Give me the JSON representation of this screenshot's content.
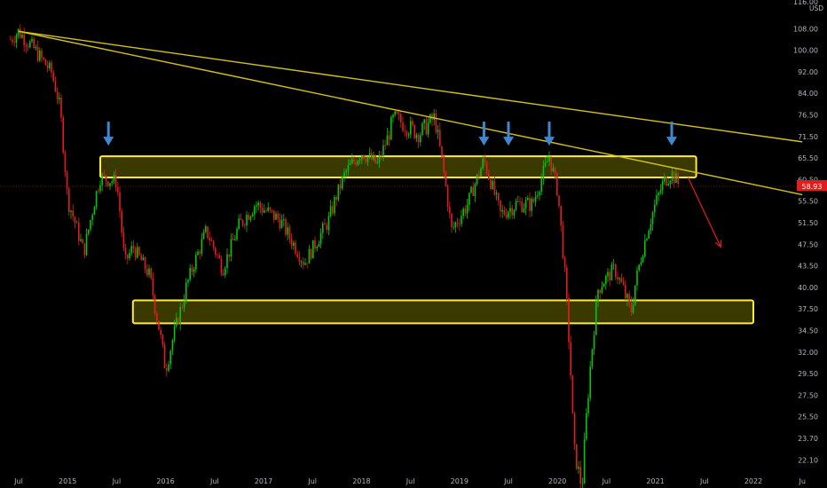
{
  "chart_data": {
    "type": "candlestick",
    "currency": "USD",
    "last_price": "58.93",
    "y_axis_ticks": [
      "116.00",
      "108.00",
      "100.00",
      "92.00",
      "84.00",
      "76.50",
      "71.50",
      "65.50",
      "60.50",
      "55.50",
      "51.50",
      "47.50",
      "43.50",
      "40.00",
      "37.50",
      "34.50",
      "32.00",
      "29.50",
      "27.50",
      "25.50",
      "23.70",
      "22.10"
    ],
    "x_axis_ticks": [
      "Jul",
      "2015",
      "Jul",
      "2016",
      "Jul",
      "2017",
      "Jul",
      "2018",
      "Jul",
      "2019",
      "Jul",
      "2020",
      "Jul",
      "2021",
      "Jul",
      "2022",
      "Ju"
    ],
    "price_path": [
      {
        "x": "2014-06",
        "y": 104
      },
      {
        "x": "2014-07",
        "y": 107
      },
      {
        "x": "2014-09",
        "y": 100
      },
      {
        "x": "2014-11",
        "y": 92
      },
      {
        "x": "2014-12",
        "y": 80
      },
      {
        "x": "2015-01",
        "y": 56
      },
      {
        "x": "2015-03",
        "y": 46
      },
      {
        "x": "2015-05",
        "y": 61
      },
      {
        "x": "2015-07",
        "y": 60
      },
      {
        "x": "2015-08",
        "y": 44
      },
      {
        "x": "2015-09",
        "y": 47
      },
      {
        "x": "2015-11",
        "y": 42
      },
      {
        "x": "2016-01",
        "y": 30
      },
      {
        "x": "2016-03",
        "y": 38
      },
      {
        "x": "2016-06",
        "y": 50
      },
      {
        "x": "2016-08",
        "y": 43
      },
      {
        "x": "2016-10",
        "y": 51
      },
      {
        "x": "2016-12",
        "y": 55
      },
      {
        "x": "2017-03",
        "y": 52
      },
      {
        "x": "2017-06",
        "y": 44
      },
      {
        "x": "2017-09",
        "y": 52
      },
      {
        "x": "2017-11",
        "y": 62
      },
      {
        "x": "2018-01",
        "y": 67
      },
      {
        "x": "2018-03",
        "y": 64
      },
      {
        "x": "2018-05",
        "y": 76
      },
      {
        "x": "2018-08",
        "y": 72
      },
      {
        "x": "2018-10",
        "y": 76
      },
      {
        "x": "2018-12",
        "y": 50
      },
      {
        "x": "2019-02",
        "y": 55
      },
      {
        "x": "2019-04",
        "y": 65
      },
      {
        "x": "2019-06",
        "y": 53
      },
      {
        "x": "2019-08",
        "y": 55
      },
      {
        "x": "2019-10",
        "y": 55
      },
      {
        "x": "2019-12",
        "y": 66
      },
      {
        "x": "2020-01",
        "y": 58
      },
      {
        "x": "2020-03",
        "y": 23
      },
      {
        "x": "2020-04",
        "y": 20
      },
      {
        "x": "2020-06",
        "y": 40
      },
      {
        "x": "2020-08",
        "y": 43
      },
      {
        "x": "2020-10",
        "y": 37
      },
      {
        "x": "2020-12",
        "y": 50
      },
      {
        "x": "2021-02",
        "y": 60
      },
      {
        "x": "2021-03",
        "y": 62
      },
      {
        "x": "2021-04",
        "y": 58.93
      }
    ],
    "support_zones": [
      {
        "y_low": 61,
        "y_high": 66,
        "x_start": "2015-05",
        "x_end": "2021-06"
      },
      {
        "y_low": 35.5,
        "y_high": 38.5,
        "x_start": "2015-09",
        "x_end": "2022-01"
      }
    ],
    "trendlines": [
      {
        "x_start": "2014-07",
        "y_start": 107,
        "x_end": "2022-07",
        "y_end": 70
      },
      {
        "x_start": "2014-07",
        "y_start": 107,
        "x_end": "2022-07",
        "y_end": 57
      }
    ],
    "arrows": {
      "resistance_touch_markers": [
        "2015-06",
        "2019-04",
        "2019-07",
        "2019-12",
        "2021-03"
      ],
      "projection": {
        "x_start": "2021-05",
        "y_start": 61,
        "x_end": "2021-09",
        "y_end": 47
      }
    },
    "colors": {
      "background": "#000000",
      "up": "#00c805",
      "down": "#e51c1c",
      "zone_fill": "#3a3a00",
      "zone_stroke": "#ffeb3b",
      "trendline": "#d4c21a",
      "marker_arrow": "#3f88d1",
      "projection_arrow": "#e51c1c",
      "last_price_bg": "#e51c1c"
    }
  }
}
